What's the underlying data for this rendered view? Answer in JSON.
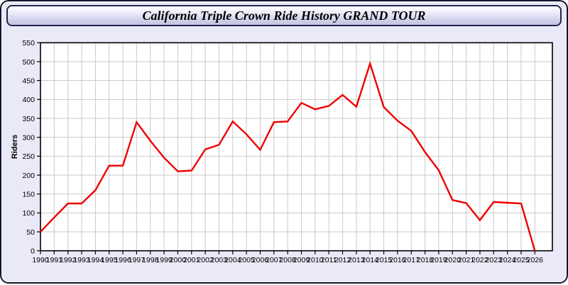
{
  "window": {
    "title": "California Triple Crown Ride History GRAND TOUR"
  },
  "theme": {
    "page_bg": "#e9e9f8",
    "border_color": "#15152e",
    "accent_red": "#ee0000"
  },
  "chart_data": {
    "type": "line",
    "title": "California Triple Crown Ride History GRAND TOUR",
    "xlabel": "",
    "ylabel": "Riders",
    "ylim": [
      0,
      550
    ],
    "ytick_step": 50,
    "grid": true,
    "legend": "none",
    "plot_bg": "#ffffff",
    "grid_color": "#c9c9c9",
    "line_color": "#ee0000",
    "x": [
      1990,
      1991,
      1992,
      1993,
      1994,
      1995,
      1996,
      1997,
      1998,
      1999,
      2000,
      2001,
      2002,
      2003,
      2004,
      2005,
      2006,
      2007,
      2008,
      2009,
      2010,
      2011,
      2012,
      2013,
      2014,
      2015,
      2016,
      2017,
      2018,
      2019,
      2020,
      2021,
      2022,
      2023,
      2024,
      2025,
      2026
    ],
    "series": [
      {
        "name": "Riders",
        "values": [
          50,
          88,
          125,
          125,
          160,
          225,
          225,
          340,
          291,
          246,
          210,
          212,
          268,
          280,
          342,
          308,
          267,
          340,
          342,
          391,
          374,
          383,
          412,
          381,
          495,
          380,
          344,
          317,
          261,
          213,
          134,
          126,
          81,
          129,
          127,
          125,
          0
        ]
      }
    ]
  }
}
